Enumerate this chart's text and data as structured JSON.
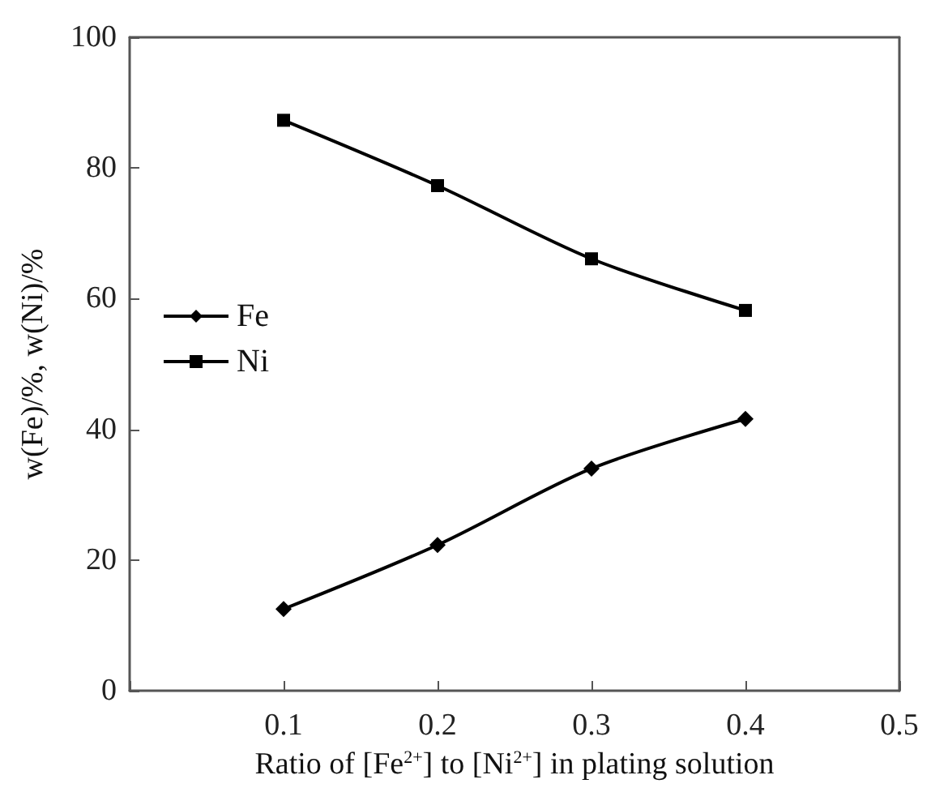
{
  "chart_data": {
    "type": "line",
    "xlabel": "Ratio of [Fe$^{2+}$] to [Ni$^{2+}$] in plating solution",
    "ylabel": "w(Fe)/%, w(Ni)/%",
    "x": [
      0.1,
      0.2,
      0.3,
      0.4
    ],
    "series": [
      {
        "name": "Fe",
        "color": "#000000",
        "marker": "diamond",
        "values": [
          12.5,
          22.3,
          34.0,
          41.6
        ]
      },
      {
        "name": "Ni",
        "color": "#000000",
        "marker": "square",
        "values": [
          87.3,
          77.3,
          66.1,
          58.2
        ]
      }
    ],
    "xlim": [
      0,
      0.5
    ],
    "xticks": [
      {
        "value": 0,
        "label": null
      },
      0.1,
      0.2,
      0.3,
      0.4,
      0.5
    ],
    "ylim": [
      0,
      100
    ],
    "yticks": [
      0,
      20,
      40,
      60,
      80,
      100
    ],
    "grid": false,
    "legend": "left",
    "line_style": "solid"
  }
}
